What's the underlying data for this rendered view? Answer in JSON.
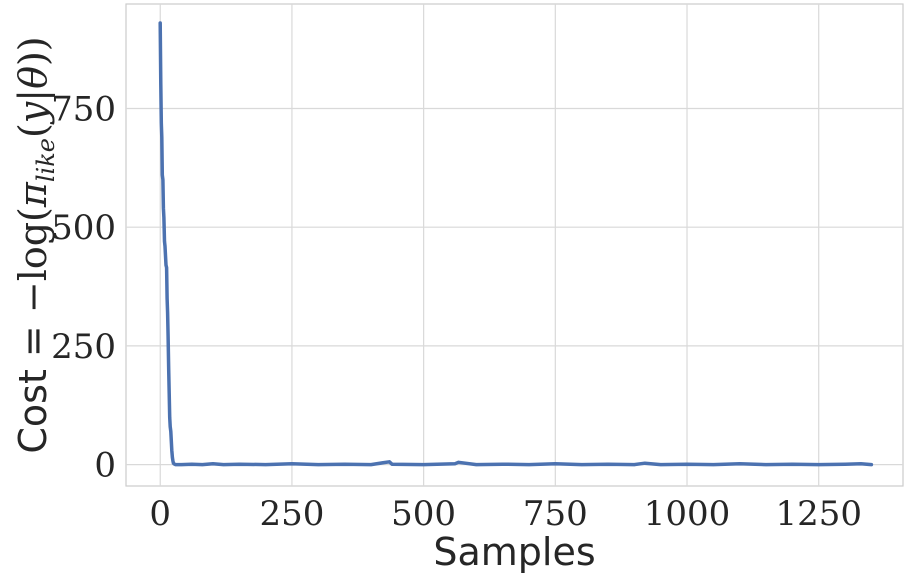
{
  "chart_data": {
    "type": "line",
    "title": "",
    "xlabel": "Samples",
    "ylabel": {
      "prefix": "Cost = ",
      "math": [
        {
          "t": "−log(",
          "style": "plain"
        },
        {
          "t": "π",
          "style": "math"
        },
        {
          "t": "like",
          "style": "sub"
        },
        {
          "t": "(",
          "style": "plain"
        },
        {
          "t": "y",
          "style": "math"
        },
        {
          "t": "|",
          "style": "plain"
        },
        {
          "t": "θ",
          "style": "math"
        },
        {
          "t": "))",
          "style": "plain"
        }
      ]
    },
    "xlim": [
      -65,
      1410
    ],
    "ylim": [
      -45,
      970
    ],
    "xticks": [
      0,
      250,
      500,
      750,
      1000,
      1250
    ],
    "xtick_labels": [
      "0",
      "250",
      "500",
      "750",
      "1000",
      "1250"
    ],
    "yticks": [
      0,
      250,
      500,
      750
    ],
    "ytick_labels": [
      "0",
      "250",
      "500",
      "750"
    ],
    "grid": true,
    "series": [
      {
        "color": "#4c72b0",
        "x": [
          0,
          1,
          2,
          3,
          4,
          5,
          6,
          7,
          8,
          9,
          10,
          11,
          12,
          13,
          14,
          15,
          16,
          17,
          18,
          19,
          20,
          21,
          22,
          23,
          24,
          25,
          26,
          27,
          28,
          29,
          30,
          31,
          32,
          33,
          34,
          35,
          40,
          60,
          80,
          100,
          120,
          150,
          200,
          250,
          300,
          350,
          400,
          435,
          440,
          500,
          560,
          566,
          600,
          650,
          700,
          750,
          800,
          850,
          900,
          920,
          950,
          1000,
          1050,
          1100,
          1150,
          1200,
          1250,
          1300,
          1330,
          1350
        ],
        "y": [
          930,
          800,
          720,
          690,
          610,
          600,
          540,
          520,
          470,
          460,
          440,
          420,
          415,
          350,
          320,
          270,
          200,
          150,
          100,
          80,
          70,
          50,
          30,
          15,
          8,
          3,
          2,
          1,
          1,
          0,
          0,
          0,
          0,
          0,
          0,
          0,
          0,
          1,
          0,
          2,
          0,
          1,
          0,
          2,
          0,
          1,
          0,
          6,
          1,
          0,
          2,
          5,
          0,
          1,
          0,
          2,
          0,
          1,
          0,
          3,
          0,
          1,
          0,
          2,
          0,
          1,
          0,
          1,
          2,
          0
        ]
      }
    ]
  }
}
